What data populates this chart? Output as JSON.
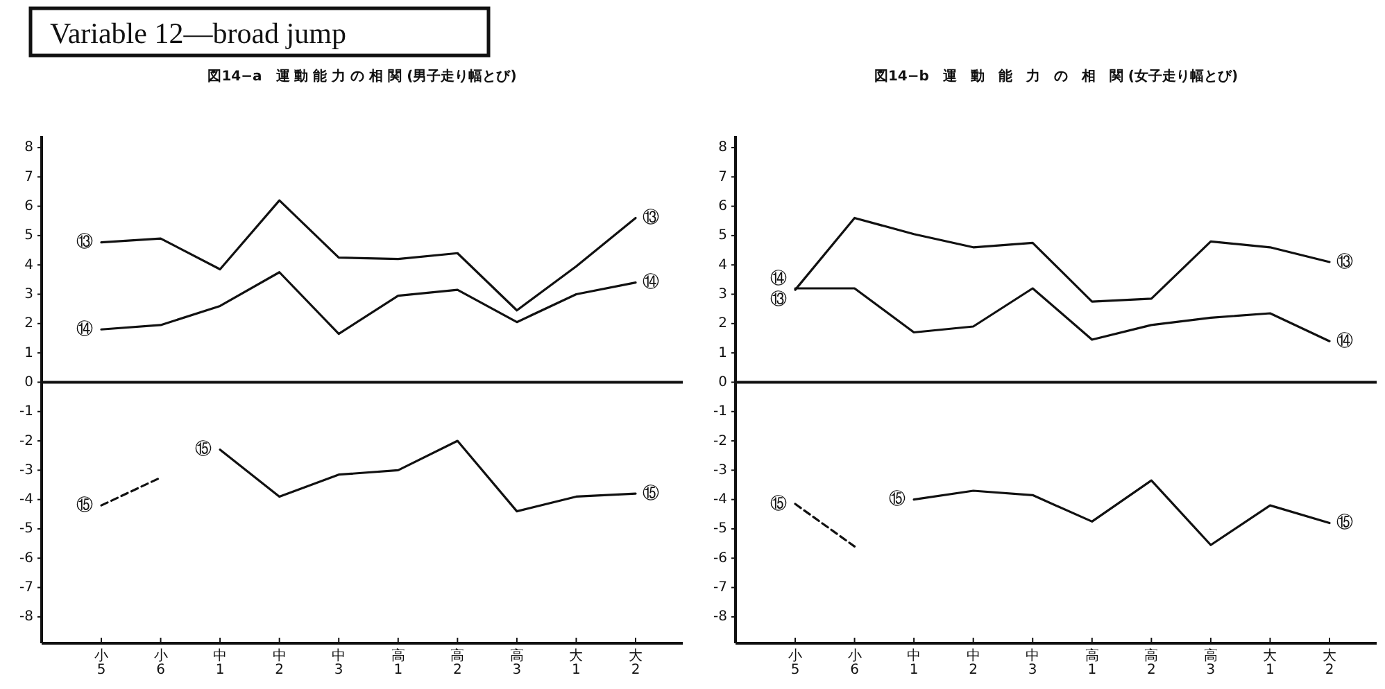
{
  "chart_data": [
    {
      "type": "other",
      "title": "Variable 12—broad jump"
    },
    {
      "type": "line",
      "title": "図14−a　運 動 能 力 の 相 関 (男子走り幅とび)",
      "categories": [
        "小\n5",
        "小\n6",
        "中\n1",
        "中\n2",
        "中\n3",
        "高\n1",
        "高\n2",
        "高\n3",
        "大\n1",
        "大\n2"
      ],
      "series": [
        {
          "name": "⑬",
          "color": "#111111",
          "line_style": "solid",
          "values": [
            4.77,
            4.9,
            3.85,
            6.2,
            4.25,
            4.2,
            4.4,
            2.45,
            3.95,
            5.6
          ]
        },
        {
          "name": "⑭",
          "color": "#111111",
          "line_style": "solid",
          "values": [
            1.8,
            1.95,
            2.6,
            3.75,
            1.65,
            2.95,
            3.15,
            2.05,
            3.0,
            3.4
          ]
        },
        {
          "name": "⑮",
          "color": "#111111",
          "line_style": "dashed",
          "values": [
            -4.2,
            -3.25,
            null,
            null,
            null,
            null,
            null,
            null,
            null,
            null
          ]
        },
        {
          "name": "⑮",
          "color": "#111111",
          "line_style": "solid",
          "values": [
            null,
            null,
            -2.3,
            -3.9,
            -3.15,
            -3.0,
            -2.0,
            -4.4,
            -3.9,
            -3.8
          ]
        }
      ],
      "ylim": [
        -8.9,
        8.4
      ],
      "yticks": [
        -8,
        -7,
        -6,
        -5,
        -4,
        -3,
        -2,
        -1,
        0,
        1,
        2,
        3,
        4,
        5,
        6,
        7,
        8
      ],
      "ref_lines": [
        {
          "axis": "y",
          "value": 0,
          "color": "#111111"
        }
      ],
      "grid": false
    },
    {
      "type": "line",
      "title": "図14−b　運　動　能　力　の　相　関 (女子走り幅とび)",
      "categories": [
        "小\n5",
        "小\n6",
        "中\n1",
        "中\n2",
        "中\n3",
        "高\n1",
        "高\n2",
        "高\n3",
        "大\n1",
        "大\n2"
      ],
      "series": [
        {
          "name": "⑬",
          "color": "#111111",
          "line_style": "solid",
          "values": [
            3.15,
            5.6,
            5.05,
            4.6,
            4.75,
            2.75,
            2.85,
            4.8,
            4.6,
            4.1
          ]
        },
        {
          "name": "⑭",
          "color": "#111111",
          "line_style": "solid",
          "values": [
            3.2,
            3.2,
            1.7,
            1.9,
            3.2,
            1.45,
            1.95,
            2.2,
            2.35,
            1.4
          ]
        },
        {
          "name": "⑮",
          "color": "#111111",
          "line_style": "dashed",
          "values": [
            -4.15,
            -5.6,
            null,
            null,
            null,
            null,
            null,
            null,
            null,
            null
          ]
        },
        {
          "name": "⑮",
          "color": "#111111",
          "line_style": "solid",
          "values": [
            null,
            null,
            -4.0,
            -3.7,
            -3.85,
            -4.75,
            -3.35,
            -5.55,
            -4.2,
            -4.8
          ]
        }
      ],
      "ylim": [
        -8.9,
        8.4
      ],
      "yticks": [
        -8,
        -7,
        -6,
        -5,
        -4,
        -3,
        -2,
        -1,
        0,
        1,
        2,
        3,
        4,
        5,
        6,
        7,
        8
      ],
      "ref_lines": [
        {
          "axis": "y",
          "value": 0,
          "color": "#111111"
        }
      ],
      "grid": false
    }
  ]
}
